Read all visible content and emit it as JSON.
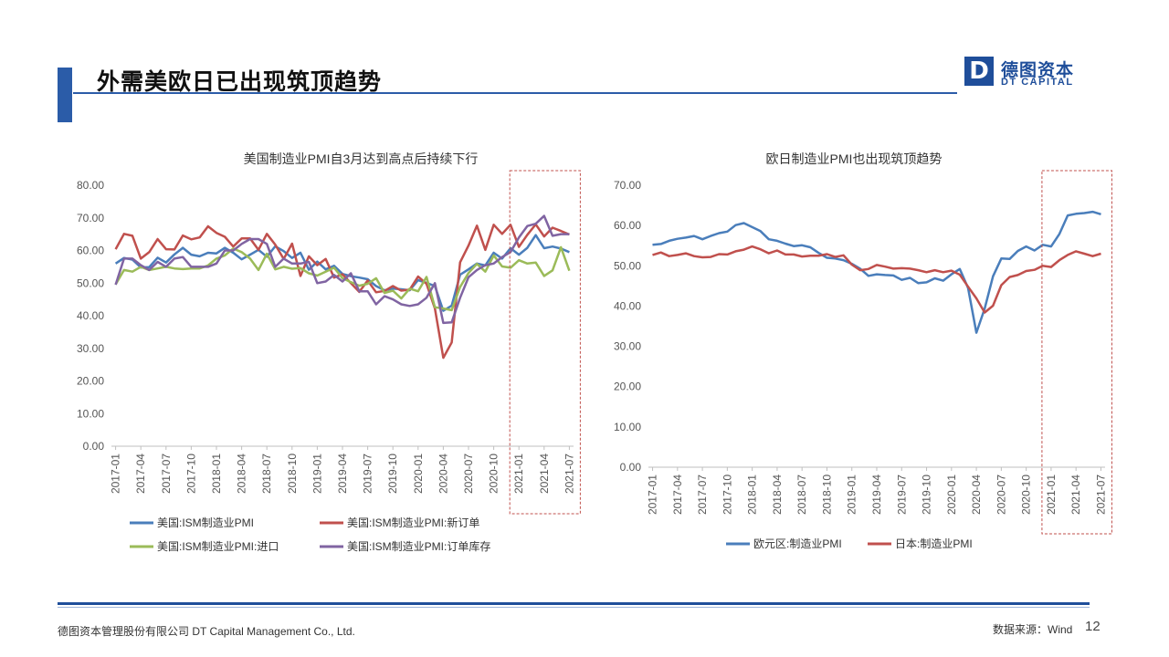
{
  "header": {
    "title": "外需美欧日已出现筑顶趋势",
    "logo_mark": "D",
    "logo_cn": "德图资本",
    "logo_en": "DT CAPITAL"
  },
  "footer": {
    "company": "德图资本管理股份有限公司  DT Capital Management Co., Ltd.",
    "source": "数据来源：Wind",
    "page_number": "12"
  },
  "colors": {
    "accent": "#2b5ca8",
    "highlight_box": "#c0504d"
  },
  "chart_data": [
    {
      "type": "line",
      "title": "美国制造业PMI自3月达到高点后持续下行",
      "xlabel": "",
      "ylabel": "",
      "ylim": [
        0,
        80
      ],
      "y_ticks": [
        "0.00",
        "10.00",
        "20.00",
        "30.00",
        "40.00",
        "50.00",
        "60.00",
        "70.00",
        "80.00"
      ],
      "x_tick_labels": [
        "2017-01",
        "2017-04",
        "2017-07",
        "2017-10",
        "2018-01",
        "2018-04",
        "2018-07",
        "2018-10",
        "2019-01",
        "2019-04",
        "2019-07",
        "2019-10",
        "2020-01",
        "2020-04",
        "2020-07",
        "2020-10",
        "2021-01",
        "2021-04",
        "2021-07"
      ],
      "legend_position": "bottom",
      "grid": false,
      "highlight_range": [
        "2021-01",
        "2021-07"
      ],
      "series": [
        {
          "name": "美国:ISM制造业PMI",
          "color": "#4a7ebb",
          "values": [
            56.0,
            57.7,
            57.2,
            54.8,
            54.9,
            57.8,
            56.3,
            58.8,
            60.8,
            58.7,
            58.2,
            59.3,
            59.1,
            60.8,
            59.3,
            57.3,
            58.7,
            60.2,
            58.1,
            61.3,
            59.8,
            57.7,
            59.3,
            54.1,
            56.6,
            54.2,
            55.3,
            52.8,
            52.1,
            51.7,
            51.2,
            49.1,
            47.8,
            48.3,
            48.1,
            47.8,
            50.9,
            50.1,
            49.1,
            41.5,
            43.1,
            52.6,
            54.2,
            56.0,
            55.4,
            59.3,
            57.5,
            60.7,
            58.7,
            60.8,
            64.7,
            60.7,
            61.2,
            60.6,
            59.5
          ]
        },
        {
          "name": "美国:ISM制造业PMI:新订单",
          "color": "#c0504d",
          "values": [
            60.4,
            65.1,
            64.5,
            57.5,
            59.5,
            63.5,
            60.4,
            60.3,
            64.6,
            63.4,
            64.0,
            67.4,
            65.4,
            64.2,
            61.2,
            63.7,
            63.7,
            60.2,
            65.1,
            61.8,
            57.4,
            62.1,
            52.2,
            58.2,
            55.5,
            57.4,
            51.7,
            52.7,
            50.0,
            47.3,
            50.8,
            47.2,
            47.6,
            49.1,
            47.7,
            48.0,
            52.0,
            49.8,
            42.2,
            27.1,
            31.8,
            56.4,
            61.5,
            67.6,
            60.2,
            67.9,
            65.1,
            67.9,
            61.1,
            64.8,
            68.0,
            64.3,
            67.0,
            66.0,
            64.9
          ]
        },
        {
          "name": "美国:ISM制造业PMI:进口",
          "color": "#9bbb59",
          "values": [
            49.6,
            54.0,
            53.5,
            55.0,
            54.0,
            54.5,
            55.0,
            54.5,
            54.3,
            54.5,
            54.5,
            55.4,
            57.5,
            58.5,
            60.6,
            59.5,
            57.5,
            54.0,
            59.0,
            54.2,
            55.0,
            54.4,
            54.6,
            53.0,
            52.3,
            53.5,
            54.7,
            51.5,
            50.3,
            49.2,
            49.8,
            51.5,
            47.0,
            47.7,
            45.3,
            48.3,
            47.5,
            51.9,
            42.6,
            42.2,
            41.7,
            48.8,
            53.1,
            55.9,
            53.5,
            58.5,
            55.1,
            54.7,
            57.0,
            56.0,
            56.3,
            52.2,
            53.9,
            61.0,
            53.8
          ]
        },
        {
          "name": "美国:ISM制造业PMI:订单库存",
          "color": "#8064a2",
          "values": [
            49.5,
            57.5,
            57.5,
            55.5,
            54.0,
            56.5,
            55.0,
            57.5,
            58.0,
            55.0,
            55.0,
            55.0,
            56.0,
            60.0,
            60.0,
            62.0,
            63.5,
            63.5,
            62.0,
            55.0,
            57.5,
            56.0,
            56.0,
            56.5,
            50.0,
            50.5,
            52.5,
            50.5,
            53.0,
            47.5,
            47.5,
            43.5,
            46.0,
            45.0,
            43.5,
            43.0,
            43.5,
            45.5,
            50.0,
            37.8,
            38.0,
            45.5,
            51.8,
            54.0,
            55.5,
            56.0,
            58.0,
            59.5,
            64.0,
            67.5,
            68.2,
            70.6,
            64.5,
            65.0,
            65.0
          ]
        }
      ]
    },
    {
      "type": "line",
      "title": "欧日制造业PMI也出现筑顶趋势",
      "xlabel": "",
      "ylabel": "",
      "ylim": [
        0,
        70
      ],
      "y_ticks": [
        "0.00",
        "10.00",
        "20.00",
        "30.00",
        "40.00",
        "50.00",
        "60.00",
        "70.00"
      ],
      "x_tick_labels": [
        "2017-01",
        "2017-04",
        "2017-07",
        "2017-10",
        "2018-01",
        "2018-04",
        "2018-07",
        "2018-10",
        "2019-01",
        "2019-04",
        "2019-07",
        "2019-10",
        "2020-01",
        "2020-04",
        "2020-07",
        "2020-10",
        "2021-01",
        "2021-04",
        "2021-07"
      ],
      "legend_position": "bottom",
      "grid": false,
      "highlight_range": [
        "2021-01",
        "2021-07"
      ],
      "series": [
        {
          "name": "欧元区:制造业PMI",
          "color": "#4a7ebb",
          "values": [
            55.2,
            55.4,
            56.2,
            56.7,
            57.0,
            57.4,
            56.6,
            57.4,
            58.1,
            58.5,
            60.1,
            60.6,
            59.6,
            58.6,
            56.6,
            56.2,
            55.5,
            54.9,
            55.1,
            54.6,
            53.2,
            52.0,
            51.8,
            51.4,
            50.5,
            49.3,
            47.5,
            47.9,
            47.7,
            47.6,
            46.5,
            47.0,
            45.7,
            45.9,
            46.9,
            46.3,
            47.9,
            49.2,
            44.5,
            33.4,
            39.4,
            47.4,
            51.8,
            51.7,
            53.7,
            54.8,
            53.8,
            55.2,
            54.8,
            57.9,
            62.5,
            62.9,
            63.1,
            63.4,
            62.8
          ]
        },
        {
          "name": "日本:制造业PMI",
          "color": "#c0504d",
          "values": [
            52.7,
            53.3,
            52.4,
            52.7,
            53.1,
            52.4,
            52.1,
            52.2,
            52.9,
            52.8,
            53.6,
            54.0,
            54.8,
            54.1,
            53.1,
            53.8,
            52.8,
            52.8,
            52.3,
            52.5,
            52.5,
            52.9,
            52.2,
            52.6,
            50.3,
            48.9,
            49.2,
            50.2,
            49.8,
            49.3,
            49.4,
            49.3,
            48.9,
            48.4,
            48.9,
            48.4,
            48.8,
            47.8,
            44.8,
            41.9,
            38.4,
            40.1,
            45.2,
            47.2,
            47.7,
            48.7,
            49.0,
            50.0,
            49.7,
            51.4,
            52.7,
            53.6,
            53.0,
            52.4,
            53.0
          ]
        }
      ]
    }
  ]
}
